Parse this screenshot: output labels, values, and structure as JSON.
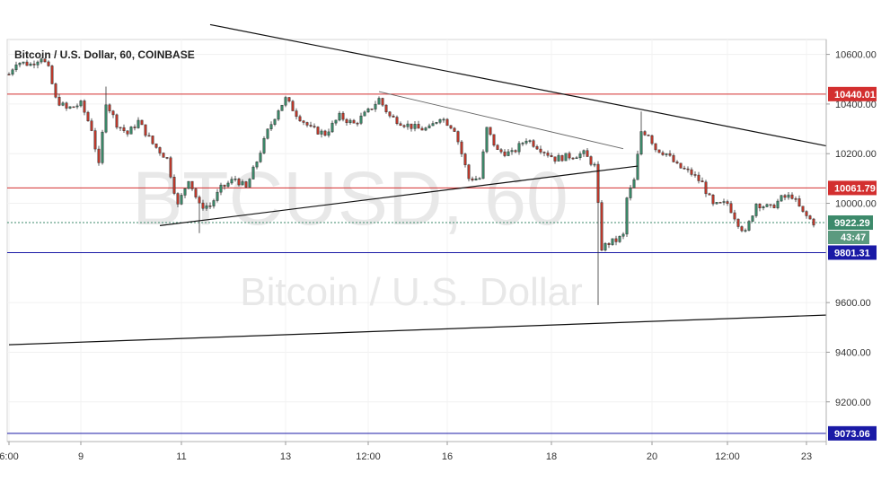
{
  "chart_title": "Bitcoin / U.S. Dollar, 60, COINBASE",
  "watermark": {
    "symbol": "BTCUSD, 60",
    "name": "Bitcoin / U.S. Dollar"
  },
  "colors": {
    "up": "#3a8a6a",
    "down": "#c0392b",
    "resistance": "#d32f2f",
    "support": "#1a1aa6",
    "trendline": "#111111",
    "last_price": "#3d8a6b",
    "countdown": "#5b9a7f"
  },
  "chart_data": {
    "type": "candlestick",
    "y_axis": {
      "position": "right",
      "range": [
        9040,
        10660
      ],
      "ticks": [
        {
          "value": 10600,
          "label": "10600.00"
        },
        {
          "value": 10400,
          "label": "10400.00"
        },
        {
          "value": 10200,
          "label": "10200.00"
        },
        {
          "value": 10000,
          "label": "10000.00"
        },
        {
          "value": 9600,
          "label": "9600.00"
        },
        {
          "value": 9400,
          "label": "9400.00"
        },
        {
          "value": 9200,
          "label": "9200.00"
        }
      ]
    },
    "x_axis": {
      "ticks": [
        {
          "index": 0,
          "label": "6:00"
        },
        {
          "index": 20,
          "label": "9"
        },
        {
          "index": 48,
          "label": "11"
        },
        {
          "index": 77,
          "label": "13"
        },
        {
          "index": 100,
          "label": "12:00"
        },
        {
          "index": 122,
          "label": "16"
        },
        {
          "index": 151,
          "label": "18"
        },
        {
          "index": 179,
          "label": "20"
        },
        {
          "index": 200,
          "label": "12:00"
        },
        {
          "index": 222,
          "label": "23"
        }
      ]
    },
    "horizontal_levels": [
      {
        "value": 10440.01,
        "label": "10440.01",
        "kind": "resistance"
      },
      {
        "value": 10061.79,
        "label": "10061.79",
        "kind": "resistance"
      },
      {
        "value": 9801.31,
        "label": "9801.31",
        "kind": "support"
      },
      {
        "value": 9073.06,
        "label": "9073.06",
        "kind": "support"
      }
    ],
    "last_price": {
      "value": 9922.29,
      "label": "9922.29",
      "countdown": "43:47"
    },
    "trendlines": [
      {
        "from": {
          "index": 56,
          "value": 10720
        },
        "to": {
          "index": 228,
          "value": 10230
        },
        "width": 1.2
      },
      {
        "from": {
          "index": 0,
          "value": 9430
        },
        "to": {
          "index": 228,
          "value": 9550
        },
        "width": 1.2
      },
      {
        "from": {
          "index": 42,
          "value": 9910
        },
        "to": {
          "index": 175,
          "value": 10150
        },
        "width": 1.2
      },
      {
        "from": {
          "index": 103,
          "value": 10450
        },
        "to": {
          "index": 171,
          "value": 10220
        },
        "width": 0.9,
        "muted": true
      }
    ],
    "anchors": [
      [
        0,
        10520
      ],
      [
        2,
        10570
      ],
      [
        6,
        10560
      ],
      [
        9,
        10590
      ],
      [
        11,
        10540
      ],
      [
        13,
        10420
      ],
      [
        16,
        10380
      ],
      [
        20,
        10400
      ],
      [
        23,
        10300
      ],
      [
        25,
        10150
      ],
      [
        27,
        10410
      ],
      [
        30,
        10320
      ],
      [
        33,
        10280
      ],
      [
        36,
        10330
      ],
      [
        40,
        10240
      ],
      [
        44,
        10180
      ],
      [
        47,
        9990
      ],
      [
        50,
        10100
      ],
      [
        53,
        9990
      ],
      [
        56,
        9990
      ],
      [
        59,
        10060
      ],
      [
        63,
        10100
      ],
      [
        66,
        10060
      ],
      [
        69,
        10170
      ],
      [
        72,
        10290
      ],
      [
        75,
        10380
      ],
      [
        77,
        10420
      ],
      [
        80,
        10360
      ],
      [
        84,
        10300
      ],
      [
        88,
        10280
      ],
      [
        92,
        10350
      ],
      [
        96,
        10320
      ],
      [
        100,
        10370
      ],
      [
        103,
        10420
      ],
      [
        106,
        10350
      ],
      [
        110,
        10320
      ],
      [
        114,
        10300
      ],
      [
        117,
        10300
      ],
      [
        120,
        10350
      ],
      [
        124,
        10300
      ],
      [
        126,
        10200
      ],
      [
        128,
        10100
      ],
      [
        131,
        10100
      ],
      [
        133,
        10300
      ],
      [
        136,
        10210
      ],
      [
        140,
        10200
      ],
      [
        144,
        10260
      ],
      [
        148,
        10220
      ],
      [
        152,
        10180
      ],
      [
        156,
        10190
      ],
      [
        160,
        10200
      ],
      [
        163,
        10150
      ],
      [
        164,
        9990
      ],
      [
        165,
        9820
      ],
      [
        167,
        9840
      ],
      [
        169,
        9850
      ],
      [
        171,
        9870
      ],
      [
        172,
        10020
      ],
      [
        174,
        10090
      ],
      [
        176,
        10290
      ],
      [
        178,
        10280
      ],
      [
        180,
        10220
      ],
      [
        183,
        10200
      ],
      [
        186,
        10150
      ],
      [
        190,
        10120
      ],
      [
        193,
        10080
      ],
      [
        196,
        9990
      ],
      [
        200,
        10000
      ],
      [
        203,
        9920
      ],
      [
        205,
        9880
      ],
      [
        208,
        10000
      ],
      [
        212,
        9980
      ],
      [
        215,
        10020
      ],
      [
        218,
        10030
      ],
      [
        221,
        9960
      ],
      [
        224,
        9922
      ]
    ],
    "candle_count": 225
  }
}
